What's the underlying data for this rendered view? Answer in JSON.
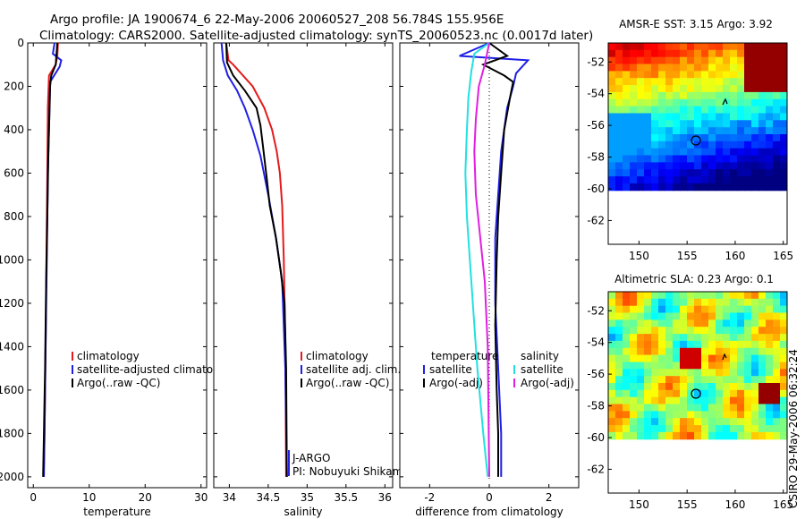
{
  "title": {
    "line1": "Argo profile: JA 1900674_6 22-May-2006 20060527_208 56.784S 155.956E",
    "line2": "Climatology: CARS2000. Satellite-adjusted climatology: synTS_20060523.nc (0.0017d later)"
  },
  "colors": {
    "red": "#e41a1c",
    "blue": "#1f1fe6",
    "black": "#000000",
    "cyan": "#22e0e0",
    "magenta": "#e020e0"
  },
  "chart_data": [
    {
      "type": "line",
      "name": "temperature-profile",
      "xlabel": "temperature",
      "xlim": [
        -1,
        31
      ],
      "ylim": [
        0,
        2050
      ],
      "xticks": [
        0,
        10,
        20,
        30
      ],
      "yticks": [
        0,
        200,
        400,
        600,
        800,
        1000,
        1200,
        1400,
        1600,
        1800,
        2000
      ],
      "y_reversed": true,
      "legend": [
        "climatology",
        "satellite-adjusted climatology",
        "Argo(..raw -QC)"
      ],
      "series": [
        {
          "name": "climatology",
          "color": "red",
          "points": [
            [
              4.4,
              0
            ],
            [
              4.3,
              60
            ],
            [
              4.0,
              100
            ],
            [
              2.8,
              150
            ],
            [
              2.6,
              300
            ],
            [
              2.5,
              600
            ],
            [
              2.35,
              1000
            ],
            [
              2.2,
              1400
            ],
            [
              2.0,
              1800
            ],
            [
              1.85,
              2000
            ]
          ]
        },
        {
          "name": "satellite-adjusted climatology",
          "color": "blue",
          "points": [
            [
              3.8,
              0
            ],
            [
              3.5,
              50
            ],
            [
              5.0,
              80
            ],
            [
              4.7,
              110
            ],
            [
              3.0,
              180
            ],
            [
              2.9,
              300
            ],
            [
              2.6,
              600
            ],
            [
              2.4,
              1000
            ],
            [
              2.2,
              1400
            ],
            [
              2.0,
              1800
            ],
            [
              1.9,
              2000
            ]
          ]
        },
        {
          "name": "Argo(..raw -QC)",
          "color": "black",
          "points": [
            [
              4.3,
              0
            ],
            [
              4.0,
              100
            ],
            [
              3.2,
              150
            ],
            [
              3.0,
              200
            ],
            [
              2.9,
              300
            ],
            [
              2.7,
              500
            ],
            [
              2.5,
              800
            ],
            [
              2.3,
              1100
            ],
            [
              2.1,
              1500
            ],
            [
              1.9,
              1800
            ],
            [
              1.75,
              2000
            ]
          ]
        }
      ]
    },
    {
      "type": "line",
      "name": "salinity-profile",
      "xlabel": "salinity",
      "xlim": [
        33.8,
        36.1
      ],
      "ylim": [
        0,
        2050
      ],
      "xticks": [
        34,
        34.5,
        35,
        35.5,
        36
      ],
      "y_reversed": true,
      "legend": [
        "climatology",
        "satellite adj. clim.",
        "Argo(..raw -QC)"
      ],
      "annotation": [
        "J-ARGO",
        "PI: Nobuyuki Shikama"
      ],
      "series": [
        {
          "name": "climatology",
          "color": "red",
          "points": [
            [
              33.96,
              0
            ],
            [
              33.99,
              80
            ],
            [
              34.05,
              100
            ],
            [
              34.3,
              200
            ],
            [
              34.45,
              300
            ],
            [
              34.55,
              400
            ],
            [
              34.61,
              500
            ],
            [
              34.65,
              600
            ],
            [
              34.68,
              750
            ],
            [
              34.7,
              1000
            ],
            [
              34.72,
              1400
            ],
            [
              34.73,
              2000
            ]
          ]
        },
        {
          "name": "satellite adj. clim.",
          "color": "blue",
          "points": [
            [
              33.9,
              0
            ],
            [
              33.92,
              80
            ],
            [
              33.98,
              150
            ],
            [
              34.1,
              220
            ],
            [
              34.2,
              300
            ],
            [
              34.3,
              400
            ],
            [
              34.4,
              520
            ],
            [
              34.5,
              700
            ],
            [
              34.6,
              900
            ],
            [
              34.68,
              1100
            ],
            [
              34.72,
              1500
            ],
            [
              34.74,
              2000
            ]
          ]
        },
        {
          "name": "Argo(..raw -QC)",
          "color": "black",
          "points": [
            [
              33.96,
              0
            ],
            [
              33.97,
              90
            ],
            [
              34.05,
              150
            ],
            [
              34.2,
              220
            ],
            [
              34.35,
              300
            ],
            [
              34.4,
              380
            ],
            [
              34.44,
              500
            ],
            [
              34.48,
              620
            ],
            [
              34.52,
              750
            ],
            [
              34.6,
              900
            ],
            [
              34.66,
              1050
            ],
            [
              34.71,
              1200
            ],
            [
              34.73,
              1500
            ],
            [
              34.74,
              2000
            ]
          ]
        }
      ]
    },
    {
      "type": "line",
      "name": "difference-from-climatology",
      "xlabel": "difference from climatology",
      "xlim": [
        -3,
        3
      ],
      "ylim": [
        0,
        2050
      ],
      "xticks": [
        -2,
        0,
        2
      ],
      "y_reversed": true,
      "legend_left": [
        "temperature",
        "satellite",
        "Argo(-adj)"
      ],
      "legend_right": [
        "salinity",
        "satellite",
        "Argo(-adj)"
      ],
      "series": [
        {
          "name": "temperature satellite",
          "color": "blue",
          "points": [
            [
              0.0,
              0
            ],
            [
              -1.0,
              60
            ],
            [
              1.3,
              80
            ],
            [
              0.9,
              140
            ],
            [
              0.8,
              200
            ],
            [
              0.6,
              300
            ],
            [
              0.4,
              500
            ],
            [
              0.3,
              700
            ],
            [
              0.2,
              900
            ],
            [
              0.2,
              1200
            ],
            [
              0.3,
              1500
            ],
            [
              0.4,
              1800
            ],
            [
              0.4,
              2000
            ]
          ]
        },
        {
          "name": "temperature Argo(-adj)",
          "color": "black",
          "points": [
            [
              0.0,
              0
            ],
            [
              0.6,
              60
            ],
            [
              -0.2,
              100
            ],
            [
              0.5,
              150
            ],
            [
              0.8,
              180
            ],
            [
              0.7,
              250
            ],
            [
              0.5,
              400
            ],
            [
              0.4,
              600
            ],
            [
              0.3,
              800
            ],
            [
              0.25,
              1000
            ],
            [
              0.2,
              1300
            ],
            [
              0.25,
              1600
            ],
            [
              0.3,
              1800
            ],
            [
              0.3,
              2000
            ]
          ]
        },
        {
          "name": "salinity satellite",
          "color": "cyan",
          "points": [
            [
              0.0,
              0
            ],
            [
              -0.5,
              50
            ],
            [
              -0.6,
              130
            ],
            [
              -0.7,
              250
            ],
            [
              -0.75,
              400
            ],
            [
              -0.8,
              600
            ],
            [
              -0.75,
              800
            ],
            [
              -0.65,
              1000
            ],
            [
              -0.5,
              1300
            ],
            [
              -0.4,
              1500
            ],
            [
              -0.2,
              1800
            ],
            [
              -0.05,
              2000
            ]
          ]
        },
        {
          "name": "salinity Argo(-adj)",
          "color": "magenta",
          "points": [
            [
              0.0,
              0
            ],
            [
              -0.15,
              100
            ],
            [
              -0.35,
              200
            ],
            [
              -0.45,
              350
            ],
            [
              -0.5,
              500
            ],
            [
              -0.45,
              700
            ],
            [
              -0.3,
              900
            ],
            [
              -0.15,
              1100
            ],
            [
              -0.05,
              1400
            ],
            [
              0.0,
              2000
            ]
          ]
        }
      ]
    },
    {
      "type": "heatmap",
      "name": "amsr-e-sst-map",
      "title": "AMSR-E SST: 3.15 Argo: 3.92",
      "xticks": [
        150,
        155,
        160,
        165
      ],
      "yticks": [
        -52,
        -54,
        -56,
        -58,
        -60,
        -62
      ],
      "xlim": [
        146.8,
        165.4
      ],
      "ylim": [
        -63.5,
        -50.8
      ],
      "data_ylim": [
        -60.1,
        -50.8
      ],
      "marker": [
        155.956,
        -56.784
      ]
    },
    {
      "type": "heatmap",
      "name": "altimetric-sla-map",
      "title": "Altimetric SLA: 0.23 Argo: 0.1",
      "xticks": [
        150,
        155,
        160,
        165
      ],
      "yticks": [
        -52,
        -54,
        -56,
        -58,
        -60,
        -62
      ],
      "xlim": [
        146.8,
        165.4
      ],
      "ylim": [
        -63.5,
        -50.8
      ],
      "data_ylim": [
        -60.1,
        -50.8
      ],
      "marker": [
        155.956,
        -56.784
      ]
    }
  ],
  "footer": "CSIRO 29-May-2006 06:32:24"
}
